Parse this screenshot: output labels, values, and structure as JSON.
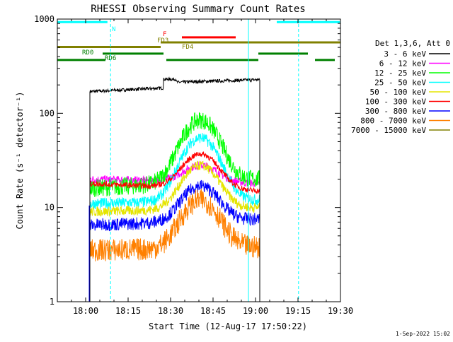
{
  "chart_data": {
    "type": "line",
    "title": "RHESSI Observing Summary Count Rates",
    "xlabel": "Start Time (12-Aug-17 17:50:22)",
    "ylabel": "Count Rate (s⁻¹ detector⁻¹)",
    "x_range": [
      "17:50",
      "19:30"
    ],
    "x_ticks": [
      "18:00",
      "18:15",
      "18:30",
      "18:45",
      "19:00",
      "19:15",
      "19:30"
    ],
    "x_ticks_min": [
      10,
      25,
      40,
      55,
      70,
      85,
      100
    ],
    "y_scale": "log",
    "ylim": [
      1,
      1000
    ],
    "y_ticks": [
      "1",
      "10",
      "100",
      "1000"
    ],
    "y_ticks_val": [
      1,
      10,
      100,
      1000
    ],
    "legend_title": "Det 1,3,6, Att 0",
    "legend_position": "right",
    "series": [
      {
        "name": "3 - 6 keV",
        "color": "#000000",
        "start_val": 170,
        "end_val": 225,
        "peak": 0,
        "noise": 0.04
      },
      {
        "name": "6 - 12 keV",
        "color": "#ff00ff",
        "start_val": 20,
        "end_val": 18,
        "peak": 28,
        "noise": 0.1
      },
      {
        "name": "12 - 25 keV",
        "color": "#00ff00",
        "start_val": 16,
        "end_val": 20,
        "peak": 85,
        "noise": 0.22
      },
      {
        "name": "25 - 50 keV",
        "color": "#00ffff",
        "start_val": 11,
        "end_val": 12,
        "peak": 55,
        "noise": 0.14
      },
      {
        "name": "50 - 100 keV",
        "color": "#e5e500",
        "start_val": 9,
        "end_val": 10,
        "peak": 28,
        "noise": 0.12
      },
      {
        "name": "100 - 300 keV",
        "color": "#ff0000",
        "start_val": 18,
        "end_val": 15,
        "peak": 37,
        "noise": 0.07
      },
      {
        "name": "300 - 800 keV",
        "color": "#0000ff",
        "start_val": 6.5,
        "end_val": 7.5,
        "peak": 17,
        "noise": 0.16
      },
      {
        "name": "800 - 7000 keV",
        "color": "#ff8000",
        "start_val": 3.5,
        "end_val": 3.8,
        "peak": 12,
        "noise": 0.28
      },
      {
        "name": "7000 - 15000 keV",
        "color": "#808000",
        "start_val": 0,
        "end_val": 0,
        "peak": 0,
        "noise": 0
      }
    ],
    "data_window_min": [
      11.5,
      71.5
    ],
    "flare_peak_min": 50.5,
    "vlines_solid_min": [
      0,
      67.5,
      100
    ],
    "vlines_dashed_min": [
      18.8,
      85.2
    ],
    "status_bars": [
      {
        "label": "N",
        "color": "#00ffff",
        "level": 930,
        "segments": [
          [
            0,
            17.7
          ],
          [
            77.5,
            99.8
          ]
        ]
      },
      {
        "label": "F",
        "color": "#ff0000",
        "level": 640,
        "segments": [
          [
            44,
            63
          ]
        ]
      },
      {
        "label": "FD3",
        "color": "#808000",
        "level": 565,
        "segments": [
          [
            36.5,
            100
          ]
        ]
      },
      {
        "label": "FD4",
        "color": "#808000",
        "level": 505,
        "segments": [
          [
            0,
            36.5
          ]
        ]
      },
      {
        "label": "RD0",
        "color": "#008000",
        "level": 430,
        "segments": [
          [
            16,
            37.5
          ],
          [
            71,
            88.5
          ]
        ]
      },
      {
        "label": "RD6",
        "color": "#008000",
        "level": 368,
        "segments": [
          [
            0,
            17
          ],
          [
            38.5,
            71
          ],
          [
            91,
            98
          ]
        ]
      }
    ],
    "timestamp": "1-Sep-2022 15:02"
  }
}
